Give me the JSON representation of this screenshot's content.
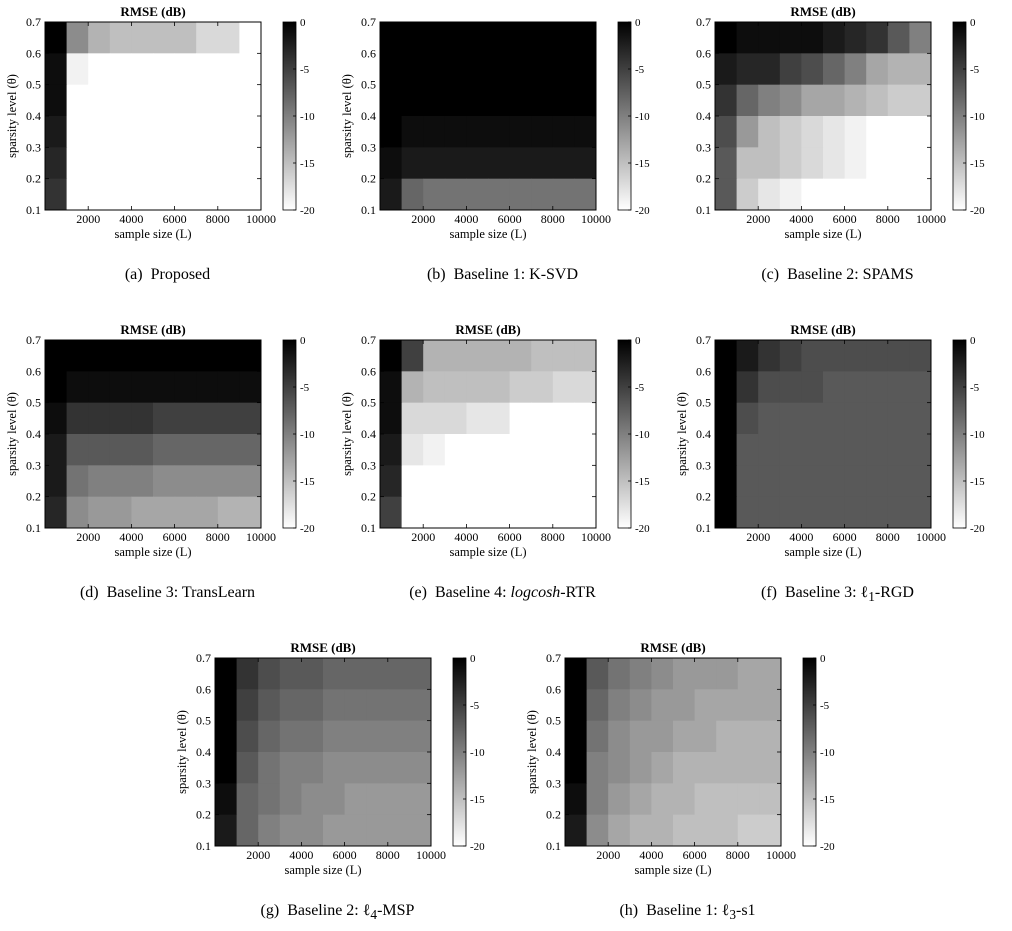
{
  "chart_data": [
    {
      "id": "a",
      "type": "heatmap",
      "title": "RMSE (dB)",
      "xlabel": "sample size (L)",
      "ylabel": "sparsity level (θ)",
      "caption_label": "(a)",
      "caption_text": "Proposed",
      "xticks": [
        "2000",
        "4000",
        "6000",
        "8000",
        "10000"
      ],
      "yticks": [
        "0.1",
        "0.2",
        "0.3",
        "0.4",
        "0.5",
        "0.6",
        "0.7"
      ],
      "colorbar_ticks": [
        "0",
        "-5",
        "-10",
        "-15",
        "-20"
      ],
      "clim": [
        -20,
        0
      ],
      "x": [
        1000,
        2000,
        3000,
        4000,
        5000,
        6000,
        7000,
        8000,
        9000,
        10000
      ],
      "y": [
        0.7,
        0.6,
        0.5,
        0.4,
        0.3,
        0.2
      ],
      "values": [
        [
          0,
          -11,
          -14,
          -15,
          -15,
          -15,
          -15,
          -17,
          -17,
          -20
        ],
        [
          -1,
          -19,
          -20,
          -20,
          -20,
          -20,
          -20,
          -20,
          -20,
          -20
        ],
        [
          -1,
          -20,
          -20,
          -20,
          -20,
          -20,
          -20,
          -20,
          -20,
          -20
        ],
        [
          -2,
          -20,
          -20,
          -20,
          -20,
          -20,
          -20,
          -20,
          -20,
          -20
        ],
        [
          -3,
          -20,
          -20,
          -20,
          -20,
          -20,
          -20,
          -20,
          -20,
          -20
        ],
        [
          -4,
          -20,
          -20,
          -20,
          -20,
          -20,
          -20,
          -20,
          -20,
          -20
        ]
      ]
    },
    {
      "id": "b",
      "type": "heatmap",
      "title": "",
      "xlabel": "sample size (L)",
      "ylabel": "sparsity level (θ)",
      "caption_label": "(b)",
      "caption_text": "Baseline 1: K-SVD",
      "xticks": [
        "2000",
        "4000",
        "6000",
        "8000",
        "10000"
      ],
      "yticks": [
        "0.1",
        "0.2",
        "0.3",
        "0.4",
        "0.5",
        "0.6",
        "0.7"
      ],
      "colorbar_ticks": [
        "0",
        "-5",
        "-10",
        "-15",
        "-20"
      ],
      "clim": [
        -20,
        0
      ],
      "x": [
        1000,
        2000,
        3000,
        4000,
        5000,
        6000,
        7000,
        8000,
        9000,
        10000
      ],
      "y": [
        0.7,
        0.6,
        0.5,
        0.4,
        0.3,
        0.2
      ],
      "values": [
        [
          0,
          0,
          0,
          0,
          0,
          0,
          0,
          0,
          0,
          0
        ],
        [
          0,
          0,
          0,
          0,
          0,
          0,
          0,
          0,
          0,
          0
        ],
        [
          0,
          0,
          0,
          0,
          0,
          0,
          0,
          0,
          0,
          0
        ],
        [
          0,
          -1,
          -1,
          -1,
          -1,
          -1,
          -1,
          -1,
          -1,
          -1
        ],
        [
          -1,
          -2,
          -2,
          -2,
          -2,
          -2,
          -2,
          -2,
          -2,
          -2
        ],
        [
          -2,
          -8,
          -9,
          -9,
          -9,
          -9,
          -9,
          -9,
          -9,
          -9
        ]
      ]
    },
    {
      "id": "c",
      "type": "heatmap",
      "title": "RMSE (dB)",
      "xlabel": "sample size (L)",
      "ylabel": "",
      "caption_label": "(c)",
      "caption_text": "Baseline 2: SPAMS",
      "xticks": [
        "2000",
        "4000",
        "6000",
        "8000",
        "10000"
      ],
      "yticks": [
        "0.1",
        "0.2",
        "0.3",
        "0.4",
        "0.5",
        "0.6",
        "0.7"
      ],
      "colorbar_ticks": [
        "0",
        "-5",
        "-10",
        "-15",
        "-20"
      ],
      "clim": [
        -20,
        0
      ],
      "x": [
        1000,
        2000,
        3000,
        4000,
        5000,
        6000,
        7000,
        8000,
        9000,
        10000
      ],
      "y": [
        0.7,
        0.6,
        0.5,
        0.4,
        0.3,
        0.2
      ],
      "values": [
        [
          0,
          -1,
          -1,
          -1,
          -1,
          -2,
          -3,
          -4,
          -7,
          -10
        ],
        [
          -2,
          -3,
          -3,
          -5,
          -6,
          -8,
          -10,
          -13,
          -14,
          -14
        ],
        [
          -4,
          -8,
          -10,
          -11,
          -13,
          -13,
          -14,
          -15,
          -16,
          -16
        ],
        [
          -6,
          -12,
          -15,
          -16,
          -17,
          -18,
          -19,
          -20,
          -20,
          -20
        ],
        [
          -7,
          -15,
          -15,
          -16,
          -17,
          -18,
          -19,
          -20,
          -20,
          -20
        ],
        [
          -7,
          -16,
          -18,
          -19,
          -20,
          -20,
          -20,
          -20,
          -20,
          -20
        ]
      ]
    },
    {
      "id": "d",
      "type": "heatmap",
      "title": "RMSE (dB)",
      "xlabel": "sample size (L)",
      "ylabel": "sparsity level (θ)",
      "caption_label": "(d)",
      "caption_text": "Baseline 3: TransLearn",
      "xticks": [
        "2000",
        "4000",
        "6000",
        "8000",
        "10000"
      ],
      "yticks": [
        "0.1",
        "0.2",
        "0.3",
        "0.4",
        "0.5",
        "0.6",
        "0.7"
      ],
      "colorbar_ticks": [
        "0",
        "-5",
        "-10",
        "-15",
        "-20"
      ],
      "clim": [
        -20,
        0
      ],
      "x": [
        1000,
        2000,
        3000,
        4000,
        5000,
        6000,
        7000,
        8000,
        9000,
        10000
      ],
      "y": [
        0.7,
        0.6,
        0.5,
        0.4,
        0.3,
        0.2
      ],
      "values": [
        [
          0,
          0,
          0,
          0,
          0,
          0,
          0,
          0,
          0,
          0
        ],
        [
          0,
          -1,
          -1,
          -1,
          -1,
          -1,
          -1,
          -1,
          -1,
          -1
        ],
        [
          -1,
          -4,
          -4,
          -4,
          -4,
          -5,
          -5,
          -5,
          -5,
          -5
        ],
        [
          -2,
          -7,
          -7,
          -7,
          -7,
          -8,
          -8,
          -8,
          -8,
          -8
        ],
        [
          -2,
          -9,
          -10,
          -10,
          -10,
          -11,
          -11,
          -11,
          -11,
          -11
        ],
        [
          -3,
          -11,
          -12,
          -12,
          -13,
          -13,
          -13,
          -13,
          -14,
          -14
        ]
      ]
    },
    {
      "id": "e",
      "type": "heatmap",
      "title": "RMSE (dB)",
      "xlabel": "sample size (L)",
      "ylabel": "sparsity level (θ)",
      "caption_label": "(e)",
      "caption_text": "Baseline 4: ",
      "caption_italic": "logcosh",
      "caption_suffix": "-RTR",
      "xticks": [
        "2000",
        "4000",
        "6000",
        "8000",
        "10000"
      ],
      "yticks": [
        "0.1",
        "0.2",
        "0.3",
        "0.4",
        "0.5",
        "0.6",
        "0.7"
      ],
      "colorbar_ticks": [
        "0",
        "-5",
        "-10",
        "-15",
        "-20"
      ],
      "clim": [
        -20,
        0
      ],
      "x": [
        1000,
        2000,
        3000,
        4000,
        5000,
        6000,
        7000,
        8000,
        9000,
        10000
      ],
      "y": [
        0.7,
        0.6,
        0.5,
        0.4,
        0.3,
        0.2
      ],
      "values": [
        [
          0,
          -5,
          -14,
          -14,
          -14,
          -14,
          -14,
          -15,
          -15,
          -15
        ],
        [
          -1,
          -14,
          -15,
          -15,
          -15,
          -15,
          -16,
          -16,
          -17,
          -17
        ],
        [
          -1,
          -17,
          -17,
          -17,
          -18,
          -18,
          -20,
          -20,
          -20,
          -20
        ],
        [
          -2,
          -18,
          -19,
          -20,
          -20,
          -20,
          -20,
          -20,
          -20,
          -20
        ],
        [
          -3,
          -20,
          -20,
          -20,
          -20,
          -20,
          -20,
          -20,
          -20,
          -20
        ],
        [
          -5,
          -20,
          -20,
          -20,
          -20,
          -20,
          -20,
          -20,
          -20,
          -20
        ]
      ]
    },
    {
      "id": "f",
      "type": "heatmap",
      "title": "RMSE (dB)",
      "xlabel": "sample size (L)",
      "ylabel": "sparsity level (θ)",
      "caption_label": "(f)",
      "caption_text": "Baseline 3: ℓ",
      "caption_sub": "1",
      "caption_suffix": "-RGD",
      "xticks": [
        "2000",
        "4000",
        "6000",
        "8000",
        "10000"
      ],
      "yticks": [
        "0.1",
        "0.2",
        "0.3",
        "0.4",
        "0.5",
        "0.6",
        "0.7"
      ],
      "colorbar_ticks": [
        "0",
        "-5",
        "-10",
        "-15",
        "-20"
      ],
      "clim": [
        -20,
        0
      ],
      "x": [
        1000,
        2000,
        3000,
        4000,
        5000,
        6000,
        7000,
        8000,
        9000,
        10000
      ],
      "y": [
        0.7,
        0.6,
        0.5,
        0.4,
        0.3,
        0.2
      ],
      "values": [
        [
          0,
          -2,
          -4,
          -5,
          -6,
          -6,
          -6,
          -6,
          -6,
          -6
        ],
        [
          0,
          -4,
          -6,
          -6,
          -6,
          -7,
          -7,
          -7,
          -7,
          -7
        ],
        [
          0,
          -6,
          -7,
          -7,
          -7,
          -7,
          -7,
          -7,
          -7,
          -7
        ],
        [
          0,
          -7,
          -7,
          -7,
          -7,
          -7,
          -7,
          -7,
          -7,
          -7
        ],
        [
          0,
          -7,
          -7,
          -7,
          -7,
          -7,
          -7,
          -7,
          -7,
          -7
        ],
        [
          0,
          -7,
          -7,
          -7,
          -7,
          -7,
          -7,
          -7,
          -7,
          -7
        ]
      ]
    },
    {
      "id": "g",
      "type": "heatmap",
      "title": "RMSE (dB)",
      "xlabel": "sample size (L)",
      "ylabel": "sparsity level (θ)",
      "caption_label": "(g)",
      "caption_text": "Baseline 2: ℓ",
      "caption_sub": "4",
      "caption_suffix": "-MSP",
      "xticks": [
        "2000",
        "4000",
        "6000",
        "8000",
        "10000"
      ],
      "yticks": [
        "0.1",
        "0.2",
        "0.3",
        "0.4",
        "0.5",
        "0.6",
        "0.7"
      ],
      "colorbar_ticks": [
        "0",
        "-5",
        "-10",
        "-15",
        "-20"
      ],
      "clim": [
        -20,
        0
      ],
      "x": [
        1000,
        2000,
        3000,
        4000,
        5000,
        6000,
        7000,
        8000,
        9000,
        10000
      ],
      "y": [
        0.7,
        0.6,
        0.5,
        0.4,
        0.3,
        0.2
      ],
      "values": [
        [
          0,
          -4,
          -6,
          -7,
          -7,
          -8,
          -8,
          -8,
          -8,
          -8
        ],
        [
          0,
          -5,
          -7,
          -8,
          -8,
          -9,
          -9,
          -9,
          -9,
          -9
        ],
        [
          0,
          -6,
          -8,
          -9,
          -9,
          -10,
          -10,
          -10,
          -10,
          -10
        ],
        [
          0,
          -7,
          -9,
          -10,
          -10,
          -11,
          -11,
          -11,
          -11,
          -11
        ],
        [
          -1,
          -8,
          -9,
          -10,
          -11,
          -11,
          -12,
          -12,
          -12,
          -12
        ],
        [
          -2,
          -8,
          -10,
          -11,
          -11,
          -12,
          -12,
          -12,
          -12,
          -12
        ]
      ]
    },
    {
      "id": "h",
      "type": "heatmap",
      "title": "RMSE (dB)",
      "xlabel": "sample size (L)",
      "ylabel": "sparsity level (θ)",
      "caption_label": "(h)",
      "caption_text": "Baseline 1: ℓ",
      "caption_sub": "3",
      "caption_suffix": "-s1",
      "xticks": [
        "2000",
        "4000",
        "6000",
        "8000",
        "10000"
      ],
      "yticks": [
        "0.1",
        "0.2",
        "0.3",
        "0.4",
        "0.5",
        "0.6",
        "0.7"
      ],
      "colorbar_ticks": [
        "0",
        "-5",
        "-10",
        "-15",
        "-20"
      ],
      "clim": [
        -20,
        0
      ],
      "x": [
        1000,
        2000,
        3000,
        4000,
        5000,
        6000,
        7000,
        8000,
        9000,
        10000
      ],
      "y": [
        0.7,
        0.6,
        0.5,
        0.4,
        0.3,
        0.2
      ],
      "values": [
        [
          0,
          -7,
          -9,
          -10,
          -11,
          -12,
          -12,
          -12,
          -13,
          -13
        ],
        [
          0,
          -8,
          -10,
          -11,
          -12,
          -12,
          -13,
          -13,
          -13,
          -13
        ],
        [
          0,
          -9,
          -11,
          -12,
          -12,
          -13,
          -13,
          -14,
          -14,
          -14
        ],
        [
          0,
          -10,
          -11,
          -12,
          -13,
          -14,
          -14,
          -14,
          -14,
          -14
        ],
        [
          -1,
          -10,
          -12,
          -13,
          -14,
          -14,
          -15,
          -15,
          -15,
          -15
        ],
        [
          -2,
          -11,
          -13,
          -14,
          -14,
          -15,
          -15,
          -15,
          -16,
          -16
        ]
      ]
    }
  ]
}
